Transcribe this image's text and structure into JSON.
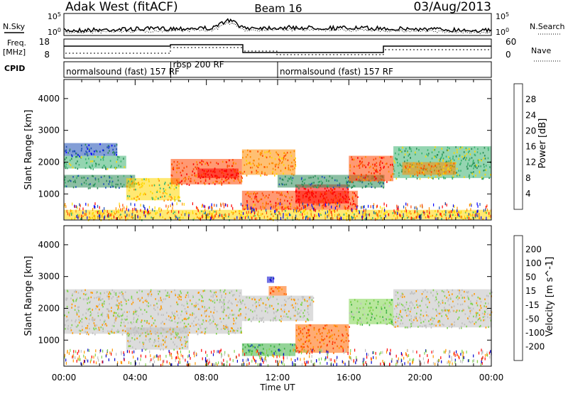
{
  "header": {
    "station": "Adak West (fitACF)",
    "beam": "Beam 16",
    "date": "03/Aug/2013"
  },
  "strips": {
    "nsky_label": "N.Sky",
    "nsearch_label": "N.Search",
    "freq_label_1": "Freq.",
    "freq_label_2": "[MHz]",
    "nave_label": "Nave",
    "cpid_label": "CPID",
    "noise_left_ticks": [
      "10^5",
      "10^0"
    ],
    "noise_right_ticks": [
      "10^5",
      "10^0"
    ],
    "freq_left_ticks": [
      "18",
      "8"
    ],
    "freq_right_ticks": [
      "60",
      "0"
    ]
  },
  "cpid": {
    "segments": [
      {
        "label": "normalsound (fast) 157 RF",
        "start_hour": 0,
        "end_hour": 6
      },
      {
        "label": "rbsp 200 RF",
        "start_hour": 6,
        "end_hour": 12
      },
      {
        "label": "normalsound (fast) 157 RF",
        "start_hour": 12,
        "end_hour": 24
      }
    ]
  },
  "chart_data": [
    {
      "type": "heatmap",
      "title": "",
      "xlabel": "Time UT",
      "ylabel": "Slant Range [km]",
      "xlim_hours": [
        0,
        24
      ],
      "ylim_km": [
        180,
        4600
      ],
      "x_tick_labels": [
        "00:00",
        "04:00",
        "08:00",
        "12:00",
        "16:00",
        "20:00",
        "00:00"
      ],
      "y_ticks": [
        1000,
        2000,
        3000,
        4000
      ],
      "colorbar": {
        "label": "Power [dB]",
        "tick_labels": [
          "4",
          "8",
          "12",
          "16",
          "20",
          "24",
          "28"
        ],
        "colors": [
          "#0000ff",
          "#1e4fb4",
          "#2e8b57",
          "#3cb371",
          "#ffd700",
          "#ff8c00",
          "#ff4500",
          "#ff0000"
        ]
      },
      "regions": [
        {
          "t0": 0.0,
          "t1": 4.0,
          "r0": 1200,
          "r1": 1600,
          "level": 2
        },
        {
          "t0": 0.0,
          "t1": 3.5,
          "r0": 1800,
          "r1": 2200,
          "level": 3
        },
        {
          "t0": 0.0,
          "t1": 3.0,
          "r0": 2200,
          "r1": 2600,
          "level": 1
        },
        {
          "t0": 3.5,
          "t1": 6.5,
          "r0": 800,
          "r1": 1500,
          "level": 4
        },
        {
          "t0": 6.0,
          "t1": 10.0,
          "r0": 1300,
          "r1": 2100,
          "level": 6
        },
        {
          "t0": 7.5,
          "t1": 9.8,
          "r0": 1500,
          "r1": 1800,
          "level": 7
        },
        {
          "t0": 10.0,
          "t1": 13.0,
          "r0": 1600,
          "r1": 2400,
          "level": 5
        },
        {
          "t0": 10.0,
          "t1": 16.5,
          "r0": 500,
          "r1": 1100,
          "level": 6
        },
        {
          "t0": 13.0,
          "t1": 16.0,
          "r0": 700,
          "r1": 1300,
          "level": 7
        },
        {
          "t0": 12.0,
          "t1": 18.0,
          "r0": 1200,
          "r1": 1600,
          "level": 2
        },
        {
          "t0": 16.0,
          "t1": 18.5,
          "r0": 1400,
          "r1": 2200,
          "level": 6
        },
        {
          "t0": 18.5,
          "t1": 24.0,
          "r0": 1500,
          "r1": 2500,
          "level": 3
        },
        {
          "t0": 19.0,
          "t1": 22.0,
          "r0": 1600,
          "r1": 2000,
          "level": 5
        },
        {
          "t0": 0.0,
          "t1": 24.0,
          "r0": 200,
          "r1": 500,
          "level": 4
        }
      ]
    },
    {
      "type": "heatmap",
      "title": "",
      "xlabel": "Time UT",
      "ylabel": "Slant Range [km]",
      "xlim_hours": [
        0,
        24
      ],
      "ylim_km": [
        180,
        4600
      ],
      "x_tick_labels": [
        "00:00",
        "04:00",
        "08:00",
        "12:00",
        "16:00",
        "20:00",
        "00:00"
      ],
      "y_ticks": [
        1000,
        2000,
        3000,
        4000
      ],
      "colorbar": {
        "label": "Velocity [m s^-1]",
        "tick_labels": [
          "200",
          "100",
          "50",
          "15",
          "-15",
          "-50",
          "-100",
          "-200"
        ],
        "colors": [
          "#0000cd",
          "#1e5aa0",
          "#3cb043",
          "#7fd34e",
          "#c0c0c0",
          "#ff9900",
          "#ff6600",
          "#ff3300",
          "#ff0000"
        ]
      },
      "regions": [
        {
          "t0": 0.0,
          "t1": 10.0,
          "r0": 1200,
          "r1": 2600,
          "level": 4
        },
        {
          "t0": 3.5,
          "t1": 7.0,
          "r0": 700,
          "r1": 1400,
          "level": 4
        },
        {
          "t0": 10.0,
          "t1": 14.0,
          "r0": 1600,
          "r1": 2400,
          "level": 4
        },
        {
          "t0": 10.0,
          "t1": 13.0,
          "r0": 500,
          "r1": 900,
          "level": 2
        },
        {
          "t0": 13.0,
          "t1": 16.0,
          "r0": 600,
          "r1": 1500,
          "level": 6
        },
        {
          "t0": 11.5,
          "t1": 12.5,
          "r0": 2400,
          "r1": 2700,
          "level": 6
        },
        {
          "t0": 11.4,
          "t1": 11.8,
          "r0": 2800,
          "r1": 3000,
          "level": 0
        },
        {
          "t0": 16.0,
          "t1": 18.5,
          "r0": 1500,
          "r1": 2300,
          "level": 3
        },
        {
          "t0": 18.5,
          "t1": 24.0,
          "r0": 1400,
          "r1": 2600,
          "level": 4
        }
      ]
    }
  ]
}
